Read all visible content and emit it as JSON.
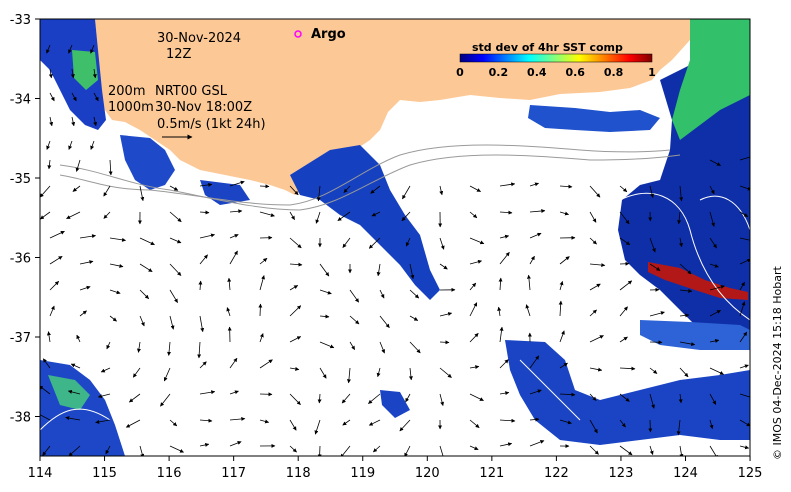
{
  "map": {
    "date_line": "30-Nov-2024",
    "time_line": "12Z",
    "depth_lines": [
      "200m",
      "1000m"
    ],
    "model_line": "NRT00 GSL",
    "valid_line": "30-Nov 18:00Z",
    "vector_scale": "0.5m/s (1kt 24h)",
    "legend_argo": "Argo",
    "colorbar": {
      "title": "std dev of 4hr SST comp",
      "ticks": [
        "0",
        "0.2",
        "0.4",
        "0.6",
        "0.8",
        "1"
      ],
      "colors": [
        "#00007f",
        "#0000ff",
        "#007fff",
        "#00ffff",
        "#7fff7f",
        "#ffff00",
        "#ff7f00",
        "#ff0000",
        "#7f0000"
      ]
    },
    "x_ticks": [
      "114",
      "115",
      "116",
      "117",
      "118",
      "119",
      "120",
      "121",
      "122",
      "123",
      "124",
      "125"
    ],
    "y_ticks": [
      "-33",
      "-34",
      "-35",
      "-36",
      "-37",
      "-38"
    ],
    "credit": "© IMOS 04-Dec-2024 15:18 Hobart",
    "land_color": "#fcc896",
    "sea_color": "#ffffff"
  }
}
